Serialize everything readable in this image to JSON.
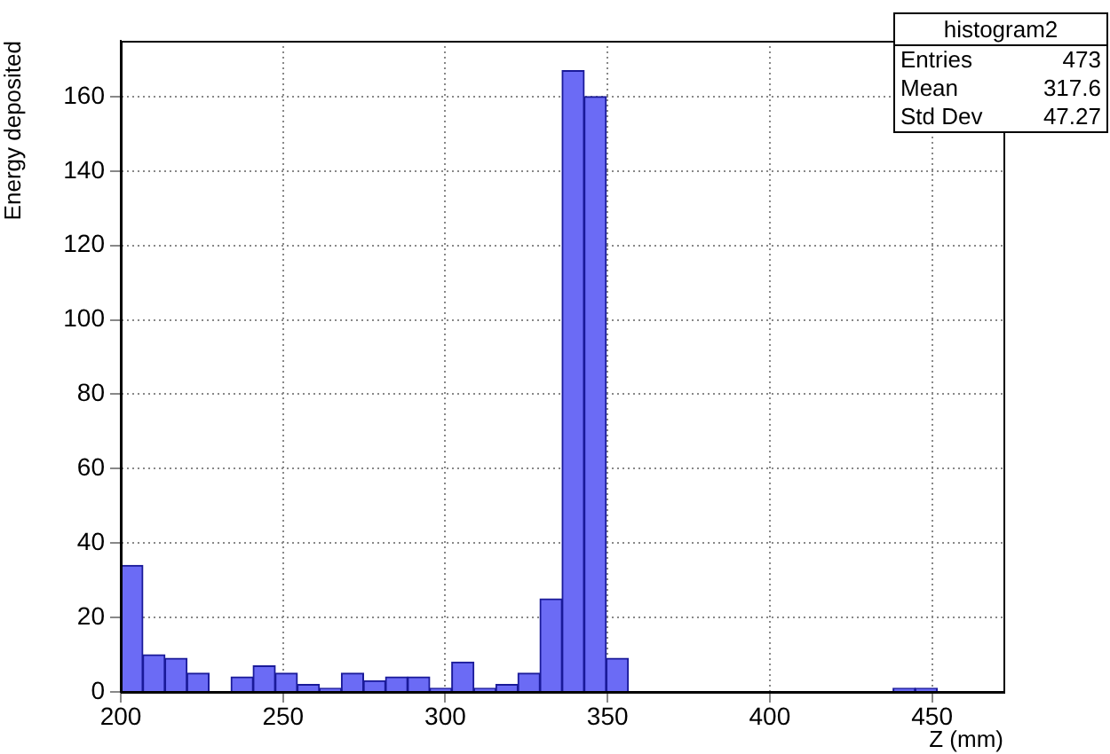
{
  "chart_data": {
    "type": "histogram",
    "xlabel": "Z (mm)",
    "ylabel": "Energy deposited",
    "bins": [
      200,
      206.8,
      213.6,
      220.4,
      227.2,
      234,
      240.8,
      247.6,
      254.4,
      261.2,
      268,
      274.8,
      281.6,
      288.4,
      295.2,
      302,
      308.8,
      315.6,
      322.4,
      329.2,
      336,
      342.8,
      349.6,
      356.4,
      363.2,
      370,
      376.8,
      383.6,
      390.4,
      397.2,
      404,
      410.8,
      417.6,
      424.4,
      431.2,
      438,
      444.8,
      451.6,
      458.4,
      465.2,
      472
    ],
    "values": [
      34,
      10,
      9,
      5,
      0,
      4,
      7,
      5,
      2,
      1,
      5,
      3,
      4,
      4,
      1,
      8,
      1,
      2,
      5,
      25,
      167,
      160,
      9,
      0,
      0,
      0,
      0,
      0,
      0,
      0,
      0,
      0,
      0,
      0,
      0,
      1,
      1,
      0,
      0,
      0
    ],
    "color": "#6b6bf5",
    "xlim": [
      200,
      472
    ],
    "ylim": [
      0,
      175
    ],
    "xticks": [
      200,
      250,
      300,
      350,
      400,
      450
    ],
    "yticks": [
      0,
      20,
      40,
      60,
      80,
      100,
      120,
      140,
      160
    ],
    "grid": true,
    "annotations": [
      "histogram2",
      "Entries 473",
      "Mean 317.6",
      "Std Dev 47.27"
    ]
  }
}
